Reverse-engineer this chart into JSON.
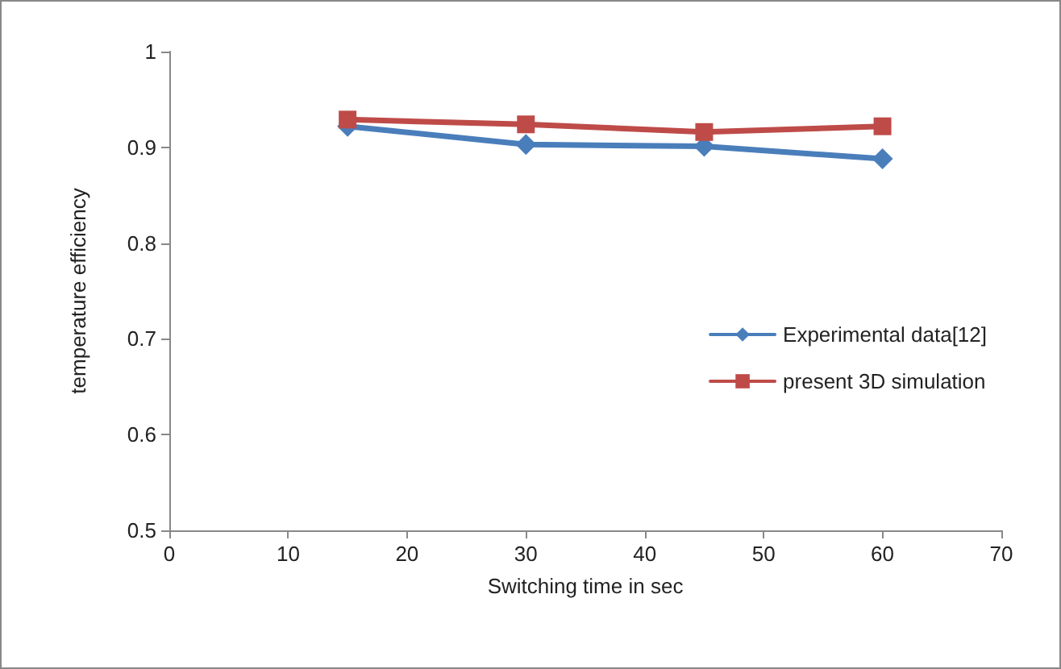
{
  "chart_data": {
    "type": "line",
    "xlabel": "Switching time in sec",
    "ylabel": "temperature efficiency",
    "x": [
      15,
      30,
      45,
      60
    ],
    "series": [
      {
        "name": "Experimental data[12]",
        "color": "#4a7ebb",
        "marker": "diamond",
        "values": [
          0.922,
          0.903,
          0.901,
          0.888
        ]
      },
      {
        "name": "present 3D simulation",
        "color": "#be4b48",
        "marker": "square",
        "values": [
          0.929,
          0.924,
          0.916,
          0.922
        ]
      }
    ],
    "xlim": [
      0,
      70
    ],
    "xticks": [
      0,
      10,
      20,
      30,
      40,
      50,
      60,
      70
    ],
    "ylim": [
      0.5,
      1
    ],
    "yticks": [
      0.5,
      0.6,
      0.7,
      0.8,
      0.9,
      1
    ],
    "grid": false,
    "legend": "right"
  }
}
